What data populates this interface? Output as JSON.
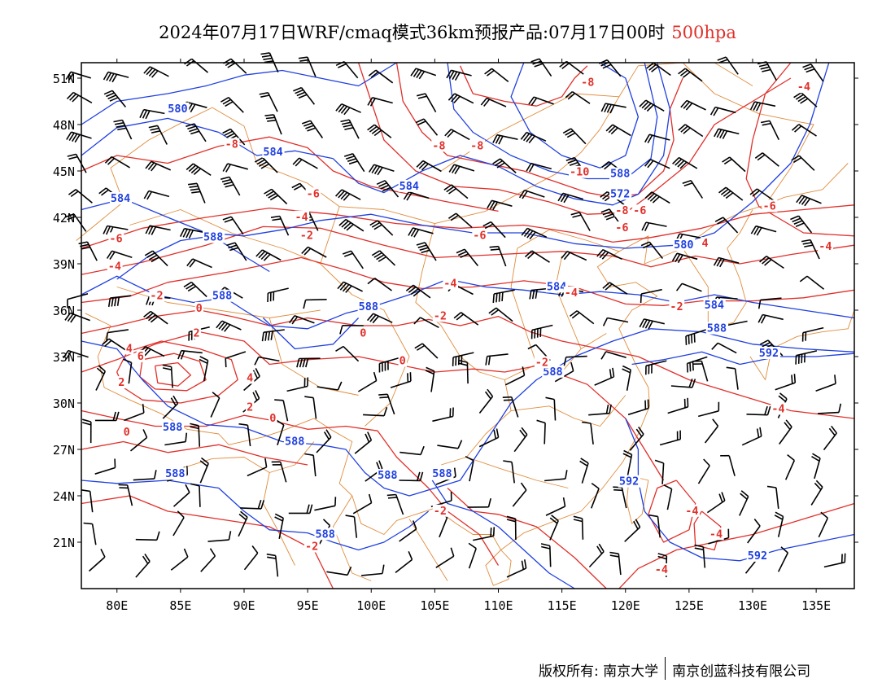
{
  "title": {
    "main": "2024年07月17日WRF/cmaq模式36km预报产品:07月17日00时",
    "level": "500hpa"
  },
  "axes": {
    "lat_labels": [
      "51N",
      "48N",
      "45N",
      "42N",
      "39N",
      "36N",
      "33N",
      "30N",
      "27N",
      "24N",
      "21N"
    ],
    "lon_labels": [
      "80E",
      "85E",
      "90E",
      "95E",
      "100E",
      "105E",
      "110E",
      "115E",
      "120E",
      "125E",
      "130E",
      "135E"
    ]
  },
  "colors": {
    "temperature": "#e0302a",
    "height": "#2040e0",
    "border": "#e08c3c",
    "wind": "#000000",
    "frame": "#000000"
  },
  "height_labels": [
    {
      "text": "580",
      "lon": 84.0,
      "lat": 48.8
    },
    {
      "text": "584",
      "lon": 91.5,
      "lat": 46.0
    },
    {
      "text": "584",
      "lon": 79.5,
      "lat": 43.0
    },
    {
      "text": "584",
      "lon": 102.2,
      "lat": 43.8
    },
    {
      "text": "588",
      "lon": 86.8,
      "lat": 40.5
    },
    {
      "text": "588",
      "lon": 118.8,
      "lat": 44.6
    },
    {
      "text": "572",
      "lon": 118.8,
      "lat": 43.3
    },
    {
      "text": "580",
      "lon": 123.8,
      "lat": 40.0
    },
    {
      "text": "584",
      "lon": 113.8,
      "lat": 37.3
    },
    {
      "text": "588",
      "lon": 87.5,
      "lat": 36.7
    },
    {
      "text": "588",
      "lon": 99.0,
      "lat": 36.0
    },
    {
      "text": "584",
      "lon": 126.2,
      "lat": 36.1
    },
    {
      "text": "588",
      "lon": 126.4,
      "lat": 34.6
    },
    {
      "text": "592",
      "lon": 130.5,
      "lat": 33.0
    },
    {
      "text": "588",
      "lon": 113.5,
      "lat": 31.8
    },
    {
      "text": "588",
      "lon": 83.6,
      "lat": 28.2
    },
    {
      "text": "588",
      "lon": 93.2,
      "lat": 27.3
    },
    {
      "text": "588",
      "lon": 100.5,
      "lat": 25.1
    },
    {
      "text": "588",
      "lon": 104.8,
      "lat": 25.2
    },
    {
      "text": "588",
      "lon": 83.8,
      "lat": 25.2
    },
    {
      "text": "592",
      "lon": 119.5,
      "lat": 24.7
    },
    {
      "text": "588",
      "lon": 95.6,
      "lat": 21.3
    },
    {
      "text": "592",
      "lon": 129.6,
      "lat": 19.9
    }
  ],
  "temperature_labels": [
    {
      "text": "-8",
      "lon": 116.5,
      "lat": 50.5
    },
    {
      "text": "-8",
      "lon": 88.5,
      "lat": 46.5
    },
    {
      "text": "-8",
      "lon": 104.8,
      "lat": 46.4
    },
    {
      "text": "-8",
      "lon": 107.8,
      "lat": 46.4
    },
    {
      "text": "-10",
      "lon": 115.6,
      "lat": 44.7
    },
    {
      "text": "-6",
      "lon": 94.9,
      "lat": 43.3
    },
    {
      "text": "-4",
      "lon": 94.0,
      "lat": 41.8
    },
    {
      "text": "-6",
      "lon": 120.6,
      "lat": 42.2
    },
    {
      "text": "-8",
      "lon": 119.2,
      "lat": 42.2
    },
    {
      "text": "-6",
      "lon": 130.8,
      "lat": 42.5
    },
    {
      "text": "-6",
      "lon": 119.2,
      "lat": 41.1
    },
    {
      "text": "-6",
      "lon": 108.0,
      "lat": 40.6
    },
    {
      "text": "-2",
      "lon": 94.4,
      "lat": 40.6
    },
    {
      "text": "-4",
      "lon": 135.2,
      "lat": 39.9
    },
    {
      "text": "-6",
      "lon": 79.4,
      "lat": 40.4
    },
    {
      "text": "4",
      "lon": 126.0,
      "lat": 40.1
    },
    {
      "text": "-4",
      "lon": 79.3,
      "lat": 38.6
    },
    {
      "text": "-4",
      "lon": 105.7,
      "lat": 37.5
    },
    {
      "text": "-4",
      "lon": 115.2,
      "lat": 36.9
    },
    {
      "text": "-2",
      "lon": 82.6,
      "lat": 36.7
    },
    {
      "text": "-2",
      "lon": 123.5,
      "lat": 36.0
    },
    {
      "text": "0",
      "lon": 86.2,
      "lat": 35.9
    },
    {
      "text": "-2",
      "lon": 104.9,
      "lat": 35.4
    },
    {
      "text": "2",
      "lon": 86.0,
      "lat": 34.3
    },
    {
      "text": "0",
      "lon": 99.1,
      "lat": 34.3
    },
    {
      "text": "4",
      "lon": 80.7,
      "lat": 33.3
    },
    {
      "text": "6",
      "lon": 81.6,
      "lat": 32.8
    },
    {
      "text": "-2",
      "lon": 112.9,
      "lat": 32.4
    },
    {
      "text": "0",
      "lon": 102.2,
      "lat": 32.5
    },
    {
      "text": "4",
      "lon": 90.2,
      "lat": 31.4
    },
    {
      "text": "2",
      "lon": 80.1,
      "lat": 31.1
    },
    {
      "text": "2",
      "lon": 90.2,
      "lat": 29.5
    },
    {
      "text": "0",
      "lon": 92.0,
      "lat": 28.8
    },
    {
      "text": "-4",
      "lon": 131.5,
      "lat": 29.4
    },
    {
      "text": "0",
      "lon": 80.5,
      "lat": 27.9
    },
    {
      "text": "-2",
      "lon": 104.9,
      "lat": 22.8
    },
    {
      "text": "-4",
      "lon": 124.7,
      "lat": 22.8
    },
    {
      "text": "-4",
      "lon": 126.6,
      "lat": 21.3
    },
    {
      "text": "-2",
      "lon": 94.8,
      "lat": 20.5
    },
    {
      "text": "-4",
      "lon": 122.3,
      "lat": 19.0
    },
    {
      "text": "-4",
      "lon": 133.5,
      "lat": 50.2
    }
  ],
  "footer": {
    "left": "版权所有: 南京大学",
    "right": "南京创蓝科技有限公司"
  }
}
